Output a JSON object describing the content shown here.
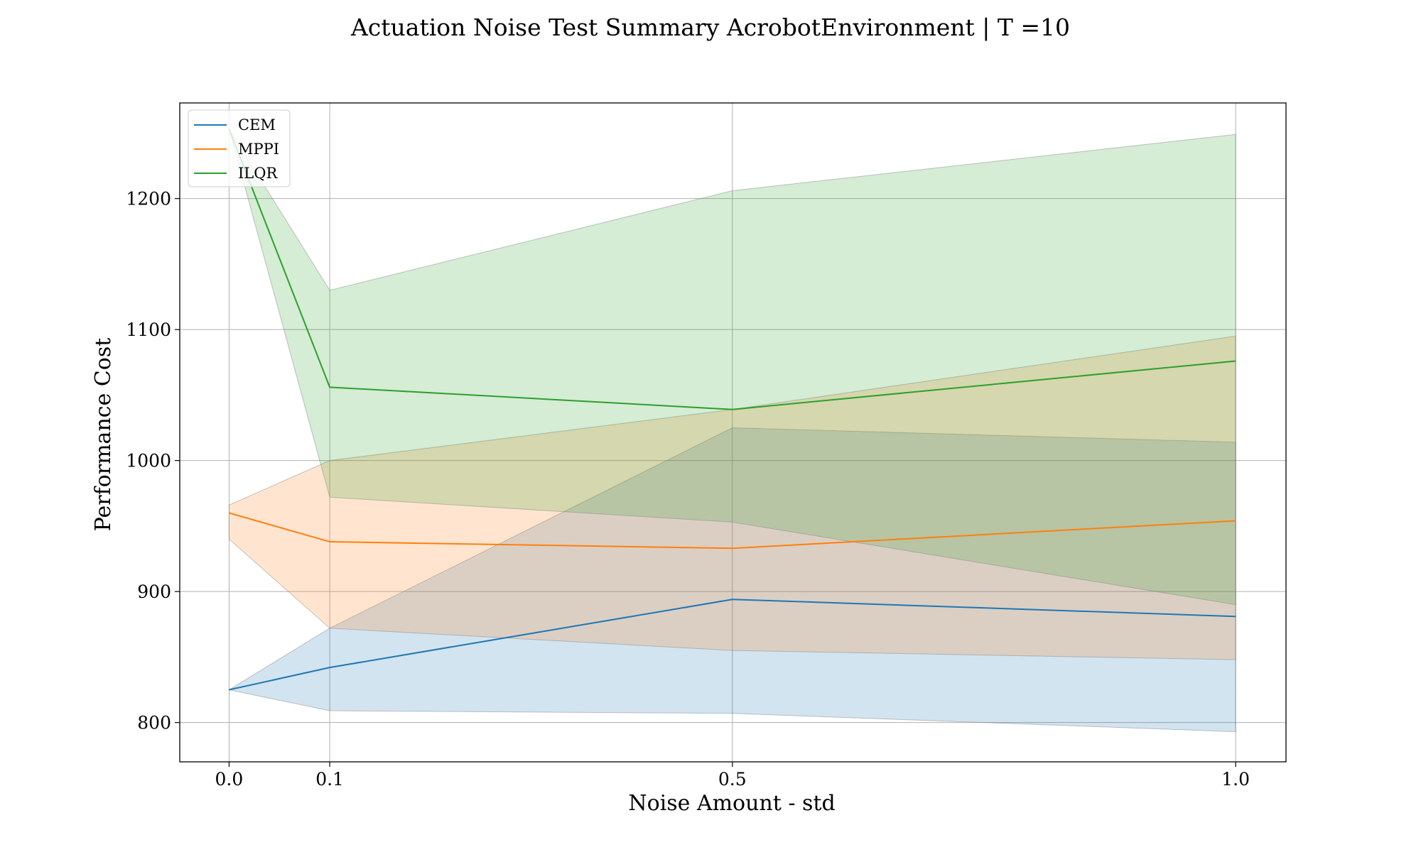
{
  "chart_data": {
    "type": "line",
    "title": "Actuation Noise Test Summary AcrobotEnvironment | T =10",
    "xlabel": "Noise Amount - std",
    "ylabel": "Performance Cost",
    "x": [
      0.0,
      0.1,
      0.5,
      1.0
    ],
    "xticks": [
      "0.0",
      "0.1",
      "0.5",
      "1.0"
    ],
    "yticks": [
      800,
      900,
      1000,
      1100,
      1200
    ],
    "xlim": [
      -0.049,
      1.05
    ],
    "ylim": [
      770,
      1273
    ],
    "grid": true,
    "legend_position": "upper-left",
    "series": [
      {
        "name": "CEM",
        "color": "#1f77b4",
        "values": [
          825,
          842,
          894,
          881
        ],
        "upper": [
          825,
          872,
          1025,
          1014
        ],
        "lower": [
          825,
          809,
          807,
          793
        ]
      },
      {
        "name": "MPPI",
        "color": "#ff7f0e",
        "values": [
          960,
          938,
          933,
          954
        ],
        "upper": [
          966,
          1000,
          1039,
          1095
        ],
        "lower": [
          940,
          872,
          855,
          848
        ]
      },
      {
        "name": "ILQR",
        "color": "#2ca02c",
        "values": [
          1253,
          1056,
          1039,
          1076
        ],
        "upper": [
          1253,
          1130,
          1206,
          1249
        ],
        "lower": [
          1253,
          972,
          953,
          890
        ]
      }
    ]
  }
}
